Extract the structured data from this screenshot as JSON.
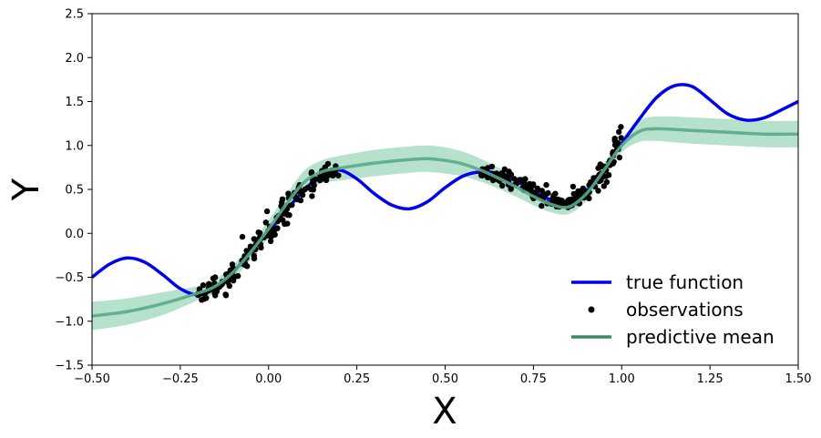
{
  "chart_data": {
    "type": "line",
    "xlabel": "X",
    "ylabel": "Y",
    "xlim": [
      -0.5,
      1.5
    ],
    "ylim": [
      -1.5,
      2.5
    ],
    "xticks": [
      -0.5,
      -0.25,
      0.0,
      0.25,
      0.5,
      0.75,
      1.0,
      1.25,
      1.5
    ],
    "xtick_labels": [
      "−0.50",
      "−0.25",
      "0.00",
      "0.25",
      "0.50",
      "0.75",
      "1.00",
      "1.25",
      "1.50"
    ],
    "yticks": [
      -1.5,
      -1.0,
      -0.5,
      0.0,
      0.5,
      1.0,
      1.5,
      2.0,
      2.5
    ],
    "ytick_labels": [
      "−1.5",
      "−1.0",
      "−0.5",
      "0.0",
      "0.5",
      "1.0",
      "1.5",
      "2.0",
      "2.5"
    ],
    "grid": false,
    "legend_position": "lower-right",
    "colors": {
      "true_function": "#0000ee",
      "observations": "#000000",
      "predictive_mean": "#5aaa8a",
      "uncertainty_band": "#a8dcc4",
      "legend_mean": "#3f8a64"
    },
    "series": [
      {
        "name": "true function",
        "x": [
          -0.5,
          -0.45,
          -0.4,
          -0.35,
          -0.3,
          -0.25,
          -0.2,
          -0.15,
          -0.1,
          -0.05,
          0.0,
          0.05,
          0.1,
          0.15,
          0.2,
          0.25,
          0.3,
          0.35,
          0.4,
          0.45,
          0.5,
          0.55,
          0.6,
          0.65,
          0.7,
          0.75,
          0.8,
          0.85,
          0.9,
          0.95,
          1.0,
          1.05,
          1.1,
          1.15,
          1.2,
          1.25,
          1.3,
          1.35,
          1.4,
          1.45,
          1.5
        ],
        "y": [
          -0.5,
          -0.35,
          -0.28,
          -0.33,
          -0.47,
          -0.63,
          -0.7,
          -0.62,
          -0.44,
          -0.21,
          0.02,
          0.26,
          0.49,
          0.66,
          0.72,
          0.62,
          0.45,
          0.32,
          0.28,
          0.36,
          0.52,
          0.65,
          0.7,
          0.68,
          0.6,
          0.48,
          0.38,
          0.35,
          0.48,
          0.72,
          1.02,
          1.3,
          1.55,
          1.68,
          1.67,
          1.52,
          1.36,
          1.29,
          1.31,
          1.4,
          1.5
        ]
      },
      {
        "name": "predictive mean",
        "x": [
          -0.5,
          -0.4,
          -0.3,
          -0.2,
          -0.15,
          -0.1,
          -0.05,
          0.0,
          0.05,
          0.1,
          0.15,
          0.2,
          0.3,
          0.4,
          0.45,
          0.5,
          0.55,
          0.6,
          0.65,
          0.7,
          0.75,
          0.8,
          0.85,
          0.9,
          0.95,
          1.0,
          1.05,
          1.1,
          1.2,
          1.3,
          1.4,
          1.5
        ],
        "y": [
          -0.94,
          -0.89,
          -0.8,
          -0.68,
          -0.6,
          -0.44,
          -0.21,
          0.05,
          0.33,
          0.58,
          0.7,
          0.74,
          0.8,
          0.84,
          0.85,
          0.83,
          0.79,
          0.72,
          0.63,
          0.53,
          0.42,
          0.33,
          0.3,
          0.45,
          0.72,
          1.0,
          1.16,
          1.19,
          1.17,
          1.15,
          1.13,
          1.13
        ]
      },
      {
        "name": "uncertainty band",
        "x": [
          -0.5,
          -0.4,
          -0.3,
          -0.2,
          -0.15,
          -0.1,
          -0.05,
          0.0,
          0.05,
          0.1,
          0.15,
          0.2,
          0.3,
          0.4,
          0.45,
          0.5,
          0.55,
          0.6,
          0.65,
          0.7,
          0.75,
          0.8,
          0.85,
          0.9,
          0.95,
          1.0,
          1.05,
          1.1,
          1.2,
          1.3,
          1.4,
          1.5
        ],
        "upper": [
          -0.78,
          -0.74,
          -0.67,
          -0.6,
          -0.52,
          -0.36,
          -0.12,
          0.15,
          0.44,
          0.71,
          0.83,
          0.88,
          0.95,
          0.99,
          1.0,
          0.98,
          0.93,
          0.85,
          0.75,
          0.64,
          0.52,
          0.42,
          0.38,
          0.53,
          0.8,
          1.08,
          1.28,
          1.33,
          1.32,
          1.3,
          1.28,
          1.28
        ],
        "lower": [
          -1.1,
          -1.04,
          -0.93,
          -0.76,
          -0.68,
          -0.52,
          -0.3,
          -0.05,
          0.22,
          0.45,
          0.57,
          0.6,
          0.65,
          0.69,
          0.7,
          0.68,
          0.65,
          0.59,
          0.51,
          0.42,
          0.32,
          0.24,
          0.22,
          0.37,
          0.64,
          0.92,
          1.04,
          1.05,
          1.02,
          1.0,
          0.98,
          0.98
        ]
      }
    ],
    "observation_regions": [
      {
        "x_range": [
          -0.2,
          0.2
        ]
      },
      {
        "x_range": [
          0.6,
          1.0
        ]
      }
    ],
    "legend": [
      "true function",
      "observations",
      "predictive mean"
    ]
  }
}
